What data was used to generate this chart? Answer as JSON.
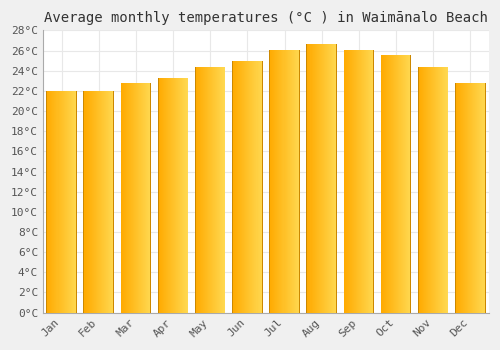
{
  "title": "Average monthly temperatures (°C ) in Waimānalo Beach",
  "months": [
    "Jan",
    "Feb",
    "Mar",
    "Apr",
    "May",
    "Jun",
    "Jul",
    "Aug",
    "Sep",
    "Oct",
    "Nov",
    "Dec"
  ],
  "temperatures": [
    22.0,
    22.0,
    22.8,
    23.3,
    24.4,
    25.0,
    26.1,
    26.7,
    26.1,
    25.6,
    24.4,
    22.8
  ],
  "bar_color_left": "#FFAA00",
  "bar_color_right": "#FFD040",
  "bar_edge_color": "#CC8800",
  "ylim": [
    0,
    28
  ],
  "ytick_step": 2,
  "plot_bg_color": "#ffffff",
  "fig_bg_color": "#f0f0f0",
  "grid_color": "#e8e8e8",
  "title_fontsize": 10,
  "tick_fontsize": 8,
  "font_family": "monospace"
}
